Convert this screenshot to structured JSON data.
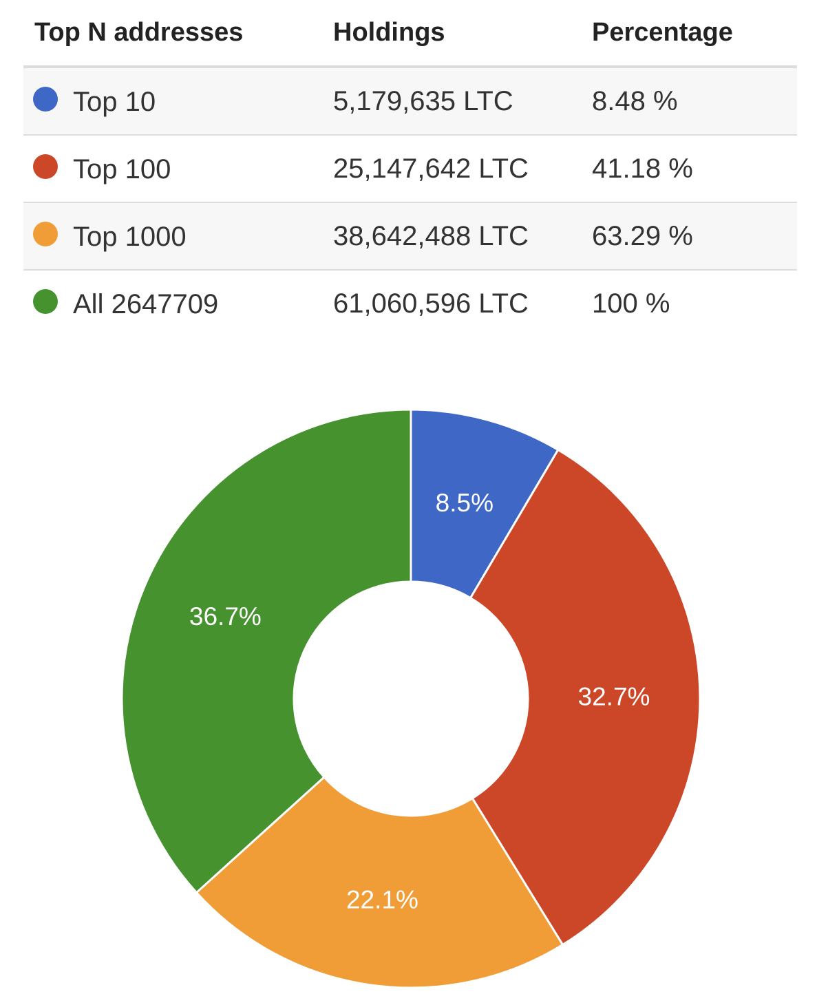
{
  "table": {
    "headers": {
      "top_n": "Top N addresses",
      "holdings": "Holdings",
      "percentage": "Percentage"
    },
    "rows": [
      {
        "label": "Top 10",
        "holdings": "5,179,635 LTC",
        "percentage": "8.48 %",
        "color": "#3e67c6"
      },
      {
        "label": "Top 100",
        "holdings": "25,147,642 LTC",
        "percentage": "41.18 %",
        "color": "#cc4628"
      },
      {
        "label": "Top 1000",
        "holdings": "38,642,488 LTC",
        "percentage": "63.29 %",
        "color": "#f09d38"
      },
      {
        "label": "All 2647709",
        "holdings": "61,060,596 LTC",
        "percentage": "100 %",
        "color": "#45922f"
      }
    ]
  },
  "chart_data": {
    "type": "pie",
    "donut": true,
    "slices": [
      {
        "value": 8.5,
        "label": "8.5%",
        "color": "#3e67c6"
      },
      {
        "value": 32.7,
        "label": "32.7%",
        "color": "#cc4628"
      },
      {
        "value": 22.1,
        "label": "22.1%",
        "color": "#f09d38"
      },
      {
        "value": 36.7,
        "label": "36.7%",
        "color": "#45922f"
      }
    ],
    "start": "top",
    "direction": "clockwise",
    "legend": "none"
  }
}
